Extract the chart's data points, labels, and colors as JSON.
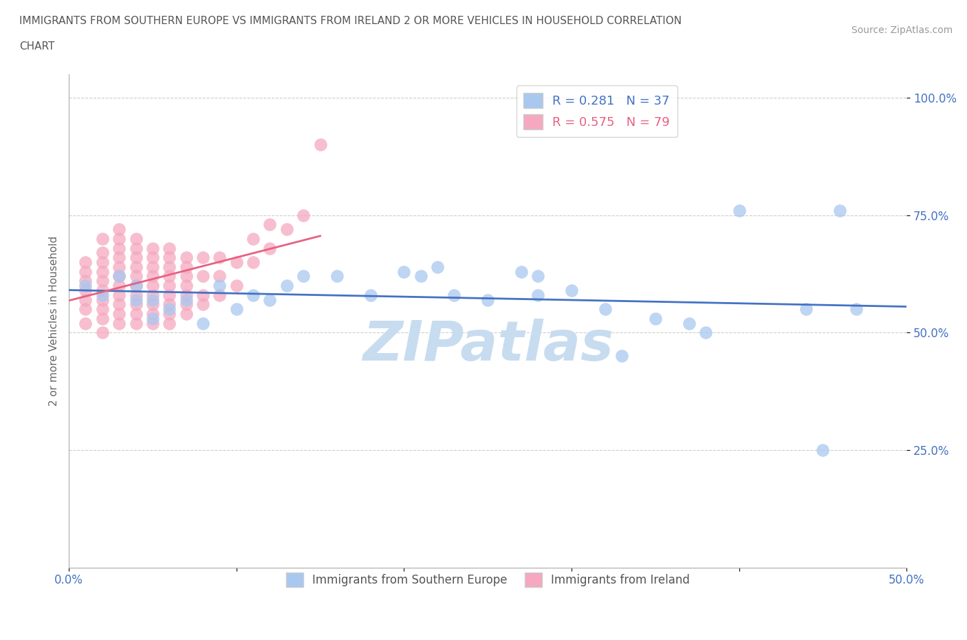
{
  "title_line1": "IMMIGRANTS FROM SOUTHERN EUROPE VS IMMIGRANTS FROM IRELAND 2 OR MORE VEHICLES IN HOUSEHOLD CORRELATION",
  "title_line2": "CHART",
  "source": "Source: ZipAtlas.com",
  "ylabel": "2 or more Vehicles in Household",
  "xlim": [
    0.0,
    0.5
  ],
  "ylim": [
    0.0,
    1.05
  ],
  "xticks": [
    0.0,
    0.1,
    0.2,
    0.3,
    0.4,
    0.5
  ],
  "xticklabels": [
    "0.0%",
    "",
    "",
    "",
    "",
    "50.0%"
  ],
  "ytick_positions": [
    0.25,
    0.5,
    0.75,
    1.0
  ],
  "ytick_labels": [
    "25.0%",
    "50.0%",
    "75.0%",
    "100.0%"
  ],
  "R_blue": 0.281,
  "N_blue": 37,
  "R_pink": 0.575,
  "N_pink": 79,
  "color_blue": "#A8C8F0",
  "color_pink": "#F5A8C0",
  "color_blue_line": "#4472C4",
  "color_pink_line": "#E86080",
  "legend_label_blue": "Immigrants from Southern Europe",
  "legend_label_pink": "Immigrants from Ireland",
  "watermark": "ZIPatlas",
  "watermark_color": "#C8DCF0",
  "background_color": "#FFFFFF",
  "blue_x": [
    0.01,
    0.02,
    0.03,
    0.04,
    0.04,
    0.05,
    0.05,
    0.06,
    0.07,
    0.08,
    0.09,
    0.1,
    0.11,
    0.12,
    0.13,
    0.14,
    0.16,
    0.18,
    0.2,
    0.21,
    0.22,
    0.23,
    0.25,
    0.27,
    0.28,
    0.28,
    0.3,
    0.32,
    0.33,
    0.35,
    0.37,
    0.38,
    0.4,
    0.44,
    0.45,
    0.46,
    0.47
  ],
  "blue_y": [
    0.6,
    0.58,
    0.62,
    0.57,
    0.6,
    0.53,
    0.57,
    0.55,
    0.57,
    0.52,
    0.6,
    0.55,
    0.58,
    0.57,
    0.6,
    0.62,
    0.62,
    0.58,
    0.63,
    0.62,
    0.64,
    0.58,
    0.57,
    0.63,
    0.62,
    0.58,
    0.59,
    0.55,
    0.45,
    0.53,
    0.52,
    0.5,
    0.76,
    0.55,
    0.25,
    0.76,
    0.55
  ],
  "pink_x": [
    0.01,
    0.01,
    0.01,
    0.01,
    0.01,
    0.01,
    0.01,
    0.02,
    0.02,
    0.02,
    0.02,
    0.02,
    0.02,
    0.02,
    0.02,
    0.02,
    0.02,
    0.03,
    0.03,
    0.03,
    0.03,
    0.03,
    0.03,
    0.03,
    0.03,
    0.03,
    0.03,
    0.03,
    0.04,
    0.04,
    0.04,
    0.04,
    0.04,
    0.04,
    0.04,
    0.04,
    0.04,
    0.04,
    0.05,
    0.05,
    0.05,
    0.05,
    0.05,
    0.05,
    0.05,
    0.05,
    0.05,
    0.06,
    0.06,
    0.06,
    0.06,
    0.06,
    0.06,
    0.06,
    0.06,
    0.06,
    0.07,
    0.07,
    0.07,
    0.07,
    0.07,
    0.07,
    0.07,
    0.08,
    0.08,
    0.08,
    0.08,
    0.09,
    0.09,
    0.09,
    0.1,
    0.1,
    0.11,
    0.11,
    0.12,
    0.12,
    0.13,
    0.14,
    0.15
  ],
  "pink_y": [
    0.52,
    0.55,
    0.57,
    0.59,
    0.61,
    0.63,
    0.65,
    0.5,
    0.53,
    0.55,
    0.57,
    0.59,
    0.61,
    0.63,
    0.65,
    0.67,
    0.7,
    0.52,
    0.54,
    0.56,
    0.58,
    0.6,
    0.62,
    0.64,
    0.66,
    0.68,
    0.7,
    0.72,
    0.52,
    0.54,
    0.56,
    0.58,
    0.6,
    0.62,
    0.64,
    0.66,
    0.68,
    0.7,
    0.52,
    0.54,
    0.56,
    0.58,
    0.6,
    0.62,
    0.64,
    0.66,
    0.68,
    0.52,
    0.54,
    0.56,
    0.58,
    0.6,
    0.62,
    0.64,
    0.66,
    0.68,
    0.54,
    0.56,
    0.58,
    0.6,
    0.62,
    0.64,
    0.66,
    0.56,
    0.58,
    0.62,
    0.66,
    0.58,
    0.62,
    0.66,
    0.6,
    0.65,
    0.65,
    0.7,
    0.68,
    0.73,
    0.72,
    0.75,
    0.9
  ]
}
